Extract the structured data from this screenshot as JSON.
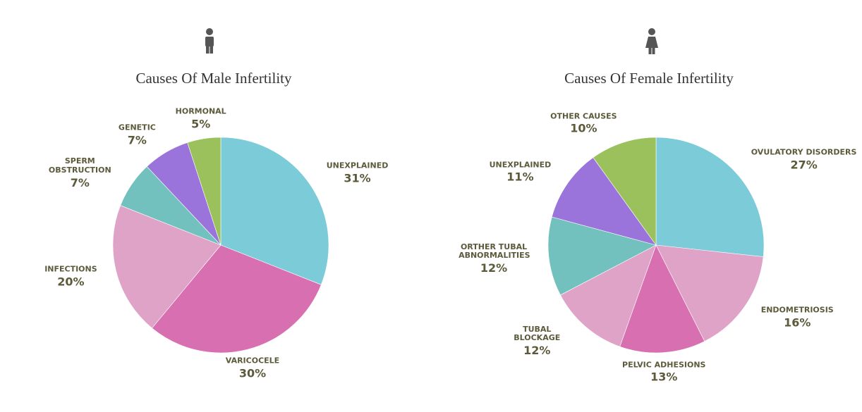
{
  "chart_data": [
    {
      "type": "pie",
      "title": "Causes Of Male Infertility",
      "categories": [
        "UNEXPLAINED",
        "VARICOCELE",
        "INFECTIONS",
        "SPERM OBSTRUCTION",
        "GENETIC",
        "HORMONAL"
      ],
      "values": [
        31,
        30,
        20,
        7,
        7,
        5
      ],
      "value_labels": [
        "31%",
        "30%",
        "20%",
        "7%",
        "7%",
        "5%"
      ],
      "colors": [
        "#7ccbd8",
        "#d86fb0",
        "#e0a3c8",
        "#72c1bf",
        "#9a74da",
        "#9bc15c"
      ]
    },
    {
      "type": "pie",
      "title": "Causes Of Female Infertility",
      "categories": [
        "OVULATORY DISORDERS",
        "ENDOMETRIOSIS",
        "PELVIC ADHESIONS",
        "TUBAL BLOCKAGE",
        "ORTHER TUBAL ABNORMALITIES",
        "UNEXPLAINED",
        "OTHER CAUSES"
      ],
      "values": [
        27,
        16,
        13,
        12,
        12,
        11,
        10
      ],
      "value_labels": [
        "27%",
        "16%",
        "13%",
        "12%",
        "12%",
        "11%",
        "10%"
      ],
      "colors": [
        "#7ccbd8",
        "#e0a3c8",
        "#d86fb0",
        "#e0a3c8",
        "#72c1bf",
        "#9a74da",
        "#9bc15c"
      ]
    }
  ]
}
